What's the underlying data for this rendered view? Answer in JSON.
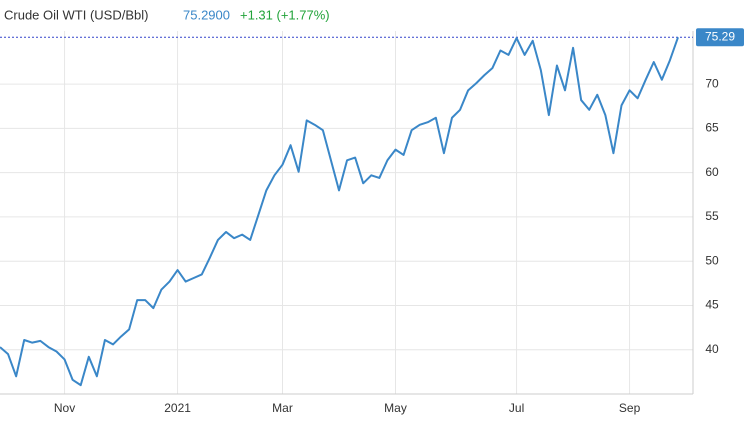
{
  "chart_data": {
    "type": "line",
    "title": "Crude Oil WTI (USD/Bbl)",
    "price": "75.2900",
    "change": "+1.31 (+1.77%)",
    "current": {
      "value": 75.29,
      "label": "75.29"
    },
    "categories": [
      null,
      null,
      null,
      null,
      null,
      null,
      null,
      null,
      "Nov",
      null,
      null,
      null,
      null,
      null,
      null,
      null,
      null,
      null,
      null,
      null,
      null,
      null,
      "2021",
      null,
      null,
      null,
      null,
      null,
      null,
      null,
      null,
      null,
      null,
      null,
      null,
      "Mar",
      null,
      null,
      null,
      null,
      null,
      null,
      null,
      null,
      null,
      null,
      null,
      null,
      null,
      "May",
      null,
      null,
      null,
      null,
      null,
      null,
      null,
      null,
      null,
      null,
      null,
      null,
      null,
      null,
      "Jul",
      null,
      null,
      null,
      null,
      null,
      null,
      null,
      null,
      null,
      null,
      null,
      null,
      null,
      "Sep",
      null,
      null,
      null,
      null,
      null,
      null
    ],
    "series": [
      {
        "name": "Crude Oil WTI",
        "color": "#3a87c8",
        "values": [
          40.3,
          39.5,
          37,
          41.1,
          40.8,
          41,
          40.3,
          39.8,
          38.9,
          36.6,
          36,
          39.2,
          37,
          41.1,
          40.6,
          41.5,
          42.3,
          45.6,
          45.6,
          44.7,
          46.8,
          47.7,
          49,
          47.7,
          48.1,
          48.5,
          50.4,
          52.4,
          53.3,
          52.6,
          53,
          52.4,
          55.2,
          58,
          59.7,
          60.9,
          63.1,
          60.1,
          65.9,
          65.4,
          64.8,
          61.4,
          58,
          61.4,
          61.7,
          58.8,
          59.7,
          59.4,
          61.4,
          62.6,
          62,
          64.8,
          65.4,
          65.7,
          66.2,
          62.2,
          66.2,
          67.1,
          69.3,
          70.1,
          71,
          71.8,
          73.8,
          73.3,
          75.2,
          73.3,
          74.9,
          71.6,
          66.5,
          72.1,
          69.3,
          74.1,
          68.2,
          67.1,
          68.8,
          66.5,
          62.2,
          67.6,
          69.3,
          68.4,
          70.5,
          72.5,
          70.5,
          72.7,
          75.29
        ]
      }
    ],
    "ylim": [
      35,
      76
    ],
    "yticks": [
      40,
      45,
      50,
      55,
      60,
      65,
      70
    ],
    "grid": true
  }
}
